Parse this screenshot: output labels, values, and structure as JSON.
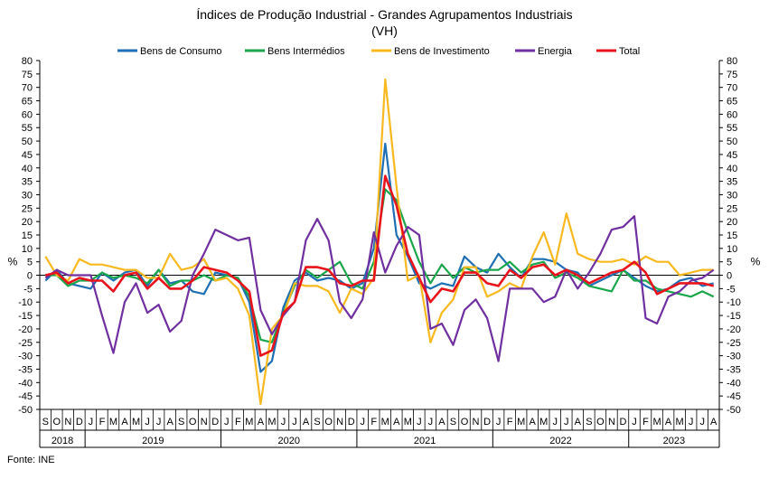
{
  "title": "Índices de Produção Industrial - Grandes Agrupamentos Industriais",
  "subtitle": "(VH)",
  "source": "Fonte: INE",
  "chart_data": {
    "type": "line",
    "title": "Índices de Produção Industrial - Grandes Agrupamentos Industriais",
    "subtitle": "(VH)",
    "ylabel": "%",
    "ylim": [
      -50,
      80
    ],
    "yticks": [
      80,
      75,
      70,
      65,
      60,
      55,
      50,
      45,
      40,
      35,
      30,
      25,
      20,
      15,
      10,
      5,
      0,
      -5,
      -10,
      -15,
      -20,
      -25,
      -30,
      -35,
      -40,
      -45,
      -50
    ],
    "grid": false,
    "legend": "top",
    "x": [
      "S",
      "O",
      "N",
      "D",
      "J",
      "F",
      "M",
      "A",
      "M",
      "J",
      "J",
      "A",
      "S",
      "O",
      "N",
      "D",
      "J",
      "F",
      "M",
      "A",
      "M",
      "J",
      "J",
      "A",
      "S",
      "O",
      "N",
      "D",
      "J",
      "F",
      "M",
      "A",
      "M",
      "J",
      "J",
      "A",
      "S",
      "O",
      "N",
      "D",
      "J",
      "F",
      "M",
      "A",
      "M",
      "J",
      "J",
      "A",
      "S",
      "O",
      "N",
      "D",
      "J",
      "F",
      "M",
      "A",
      "M",
      "J",
      "J",
      "A"
    ],
    "years": [
      {
        "label": "2018",
        "start": 0,
        "end": 3
      },
      {
        "label": "2019",
        "start": 4,
        "end": 15
      },
      {
        "label": "2020",
        "start": 16,
        "end": 27
      },
      {
        "label": "2021",
        "start": 28,
        "end": 39
      },
      {
        "label": "2022",
        "start": 40,
        "end": 51
      },
      {
        "label": "2023",
        "start": 52,
        "end": 59
      }
    ],
    "series": [
      {
        "name": "Bens de Consumo",
        "color": "#1f6fb4",
        "values": [
          -2,
          2,
          -3,
          -4,
          -5,
          1,
          -2,
          1,
          2,
          -4,
          2,
          -3,
          -2,
          -6,
          -7,
          1,
          0,
          -1,
          -10,
          -36,
          -32,
          -12,
          -2,
          1,
          -2,
          -1,
          -2,
          -5,
          -3,
          10,
          49,
          15,
          7,
          -3,
          -5,
          -3,
          -4,
          7,
          3,
          1,
          8,
          3,
          -1,
          6,
          6,
          5,
          2,
          1,
          -4,
          -2,
          0,
          2,
          -1,
          -4,
          -6,
          -5,
          -2,
          -1,
          -4,
          -3
        ]
      },
      {
        "name": "Bens Intermédios",
        "color": "#1aa64a",
        "values": [
          0,
          0,
          -4,
          -2,
          -2,
          1,
          -1,
          0,
          -1,
          -3,
          2,
          -4,
          -2,
          -2,
          0,
          -2,
          0,
          -1,
          -8,
          -24,
          -25,
          -14,
          -4,
          2,
          -1,
          2,
          5,
          -3,
          -5,
          5,
          32,
          28,
          16,
          5,
          -3,
          4,
          -1,
          3,
          1,
          2,
          2,
          5,
          1,
          4,
          5,
          -1,
          1,
          -1,
          -4,
          -5,
          -6,
          2,
          -2,
          -2,
          -5,
          -6,
          -7,
          -8,
          -6,
          -8
        ]
      },
      {
        "name": "Bens de Investimento",
        "color": "#f7b91f",
        "values": [
          7,
          0,
          -2,
          6,
          4,
          4,
          3,
          2,
          2,
          -1,
          -1,
          8,
          2,
          3,
          6,
          -2,
          -1,
          -5,
          -15,
          -48,
          -20,
          -15,
          -3,
          -4,
          -4,
          -6,
          -14,
          -5,
          -7,
          -1,
          73,
          33,
          -2,
          0,
          -25,
          -14,
          -9,
          3,
          3,
          -8,
          -6,
          -3,
          -5,
          7,
          16,
          4,
          23,
          8,
          6,
          5,
          5,
          6,
          4,
          7,
          5,
          5,
          0,
          1,
          2,
          2
        ]
      },
      {
        "name": "Energia",
        "color": "#7030a0",
        "values": [
          -1,
          2,
          0,
          0,
          0,
          -15,
          -29,
          -10,
          -3,
          -14,
          -11,
          -21,
          -17,
          0,
          8,
          17,
          15,
          13,
          14,
          -13,
          -22,
          -15,
          -10,
          13,
          21,
          13,
          -10,
          -16,
          -9,
          16,
          1,
          11,
          18,
          15,
          -20,
          -18,
          -26,
          -13,
          -9,
          -16,
          -32,
          -5,
          -5,
          -5,
          -10,
          -8,
          2,
          -5,
          1,
          8,
          17,
          18,
          22,
          -16,
          -18,
          -8,
          -6,
          -2,
          -1,
          2
        ]
      },
      {
        "name": "Total",
        "color": "#e8141c",
        "values": [
          0,
          1,
          -3,
          -1,
          -2,
          -2,
          -6,
          0,
          1,
          -5,
          -1,
          -5,
          -5,
          -2,
          3,
          2,
          1,
          -2,
          -6,
          -30,
          -28,
          -14,
          -10,
          3,
          3,
          2,
          -3,
          -4,
          -2,
          -2,
          37,
          26,
          8,
          -1,
          -10,
          -5,
          -6,
          1,
          1,
          -3,
          -4,
          2,
          -1,
          3,
          4,
          0,
          2,
          0,
          -3,
          -1,
          1,
          2,
          5,
          1,
          -7,
          -5,
          -3,
          -3,
          -3,
          -4
        ]
      }
    ]
  }
}
